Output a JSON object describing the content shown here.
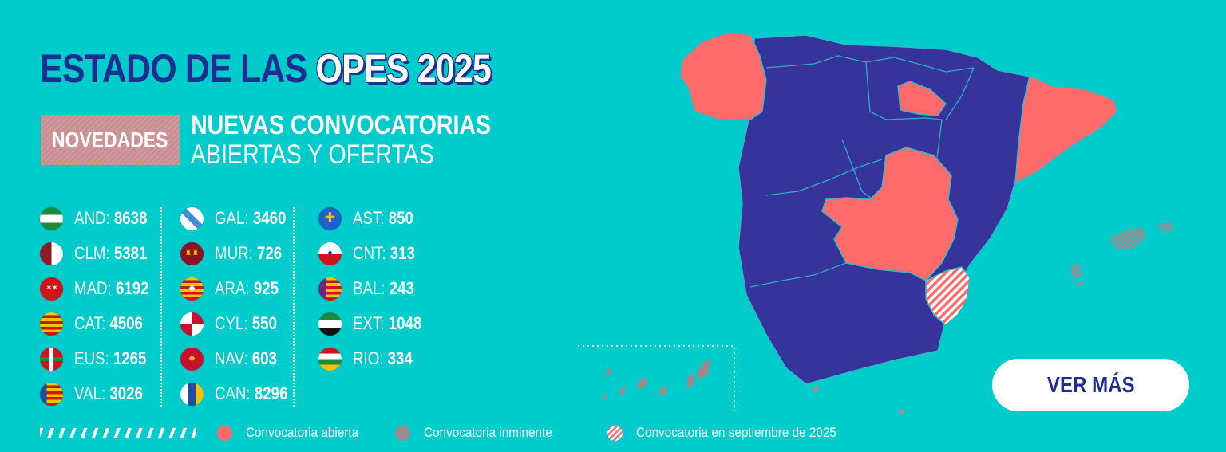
{
  "title": {
    "part1": "ESTADO DE LAS",
    "part2": "OPES 2025"
  },
  "badge": "NOVEDADES",
  "headline": {
    "line1": "NUEVAS CONVOCATORIAS",
    "line2": "ABIERTAS Y OFERTAS"
  },
  "columns": [
    [
      {
        "code": "AND",
        "value": "8638",
        "flag": "flag-andalucia"
      },
      {
        "code": "CLM",
        "value": "5381",
        "flag": "flag-castilla-la-mancha"
      },
      {
        "code": "MAD",
        "value": "6192",
        "flag": "flag-madrid"
      },
      {
        "code": "CAT",
        "value": "4506",
        "flag": "flag-cataluna"
      },
      {
        "code": "EUS",
        "value": "1265",
        "flag": "flag-euskadi"
      },
      {
        "code": "VAL",
        "value": "3026",
        "flag": "flag-valencia"
      }
    ],
    [
      {
        "code": "GAL",
        "value": "3460",
        "flag": "flag-galicia"
      },
      {
        "code": "MUR",
        "value": "726",
        "flag": "flag-murcia"
      },
      {
        "code": "ARA",
        "value": "925",
        "flag": "flag-aragon"
      },
      {
        "code": "CYL",
        "value": "550",
        "flag": "flag-castilla-y-leon"
      },
      {
        "code": "NAV",
        "value": "603",
        "flag": "flag-navarra"
      },
      {
        "code": "CAN",
        "value": "8296",
        "flag": "flag-canarias"
      }
    ],
    [
      {
        "code": "AST",
        "value": "850",
        "flag": "flag-asturias"
      },
      {
        "code": "CNT",
        "value": "313",
        "flag": "flag-cantabria"
      },
      {
        "code": "BAL",
        "value": "243",
        "flag": "flag-baleares"
      },
      {
        "code": "EXT",
        "value": "1048",
        "flag": "flag-extremadura"
      },
      {
        "code": "RIO",
        "value": "334",
        "flag": "flag-la-rioja"
      }
    ]
  ],
  "cta": "VER MÁS",
  "legend": {
    "open": "Convocatoria abierta",
    "imminent": "Convocatoria inminente",
    "september": "Convocatoria en septiembre de 2025"
  },
  "colors": {
    "background": "#00cccc",
    "navy": "#1c2e8f",
    "map_region": "#36349a",
    "open": "#ff6b6b",
    "imminent": "#9b8b8f",
    "badge": "#c98f93"
  },
  "map": {
    "regions_open": [
      "Galicia",
      "La Rioja",
      "Cataluña",
      "Castilla-La Mancha"
    ],
    "regions_imminent": [
      "Baleares",
      "Canarias"
    ],
    "regions_september": [
      "Murcia"
    ]
  }
}
